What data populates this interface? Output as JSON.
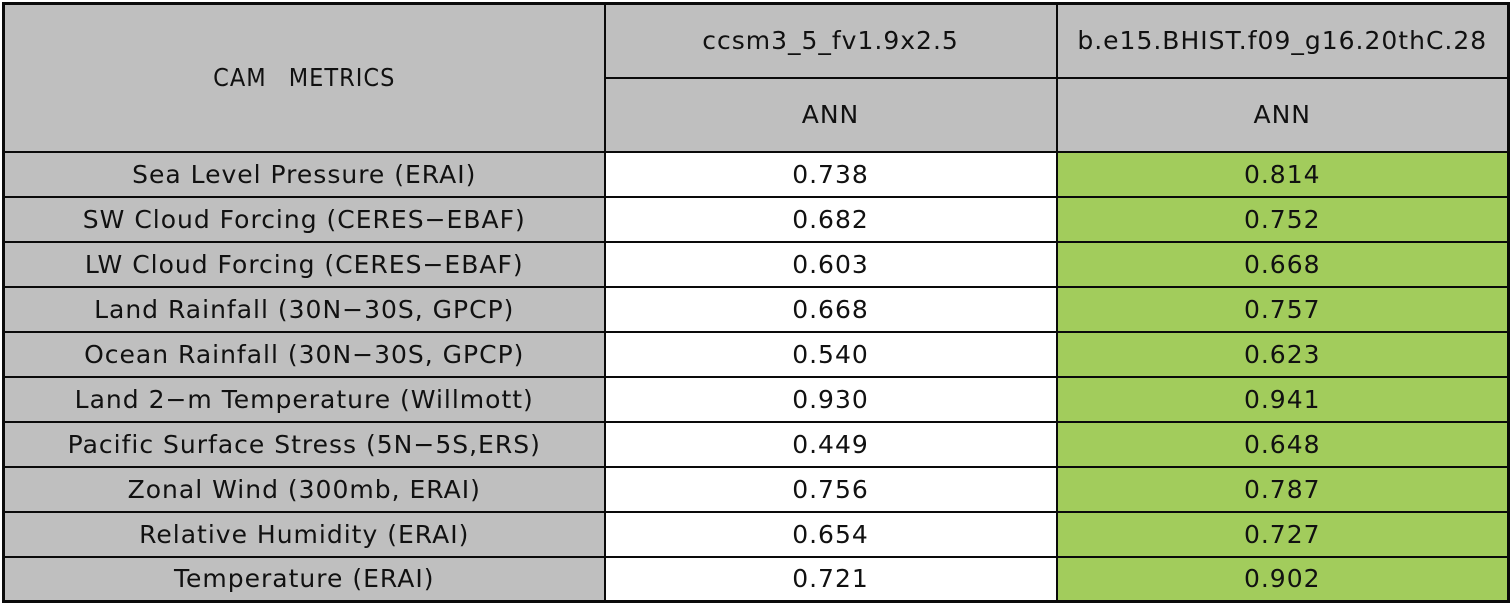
{
  "title": "CAM METRICS",
  "colors": {
    "title_bg": "#6495ED",
    "header_bg": "#BFBFBF",
    "model1_bg": "#FFFFFF",
    "model2_bg": "#A2CC5C",
    "border": "#0A0A0A",
    "text": "#111111"
  },
  "columns": [
    {
      "model": "ccsm3_5_fv1.9x2.5",
      "season": "ANN"
    },
    {
      "model": "b.e15.BHIST.f09_g16.20thC.28",
      "season": "ANN"
    }
  ],
  "rows": [
    {
      "metric": "Sea Level Pressure (ERAI)",
      "values": [
        "0.738",
        "0.814"
      ]
    },
    {
      "metric": "SW Cloud Forcing (CERES−EBAF)",
      "values": [
        "0.682",
        "0.752"
      ]
    },
    {
      "metric": "LW Cloud Forcing (CERES−EBAF)",
      "values": [
        "0.603",
        "0.668"
      ]
    },
    {
      "metric": "Land Rainfall (30N−30S, GPCP)",
      "values": [
        "0.668",
        "0.757"
      ]
    },
    {
      "metric": "Ocean Rainfall (30N−30S, GPCP)",
      "values": [
        "0.540",
        "0.623"
      ]
    },
    {
      "metric": "Land 2−m Temperature (Willmott)",
      "values": [
        "0.930",
        "0.941"
      ]
    },
    {
      "metric": "Pacific Surface Stress (5N−5S,ERS)",
      "values": [
        "0.449",
        "0.648"
      ]
    },
    {
      "metric": "Zonal Wind (300mb, ERAI)",
      "values": [
        "0.756",
        "0.787"
      ]
    },
    {
      "metric": "Relative Humidity (ERAI)",
      "values": [
        "0.654",
        "0.727"
      ]
    },
    {
      "metric": "Temperature (ERAI)",
      "values": [
        "0.721",
        "0.902"
      ]
    }
  ],
  "chart_data": {
    "type": "table",
    "title": "CAM METRICS",
    "row_labels": [
      "Sea Level Pressure (ERAI)",
      "SW Cloud Forcing (CERES−EBAF)",
      "LW Cloud Forcing (CERES−EBAF)",
      "Land Rainfall (30N−30S, GPCP)",
      "Ocean Rainfall (30N−30S, GPCP)",
      "Land 2−m Temperature (Willmott)",
      "Pacific Surface Stress (5N−5S,ERS)",
      "Zonal Wind (300mb, ERAI)",
      "Relative Humidity (ERAI)",
      "Temperature (ERAI)"
    ],
    "series": [
      {
        "name": "ccsm3_5_fv1.9x2.5",
        "season": "ANN",
        "values": [
          0.738,
          0.682,
          0.603,
          0.668,
          0.54,
          0.93,
          0.449,
          0.756,
          0.654,
          0.721
        ]
      },
      {
        "name": "b.e15.BHIST.f09_g16.20thC.28",
        "season": "ANN",
        "values": [
          0.814,
          0.752,
          0.668,
          0.757,
          0.623,
          0.941,
          0.648,
          0.787,
          0.727,
          0.902
        ]
      }
    ],
    "highlight": "second series cells shaded green; metric labels and headers shaded gray; title cell blue"
  }
}
